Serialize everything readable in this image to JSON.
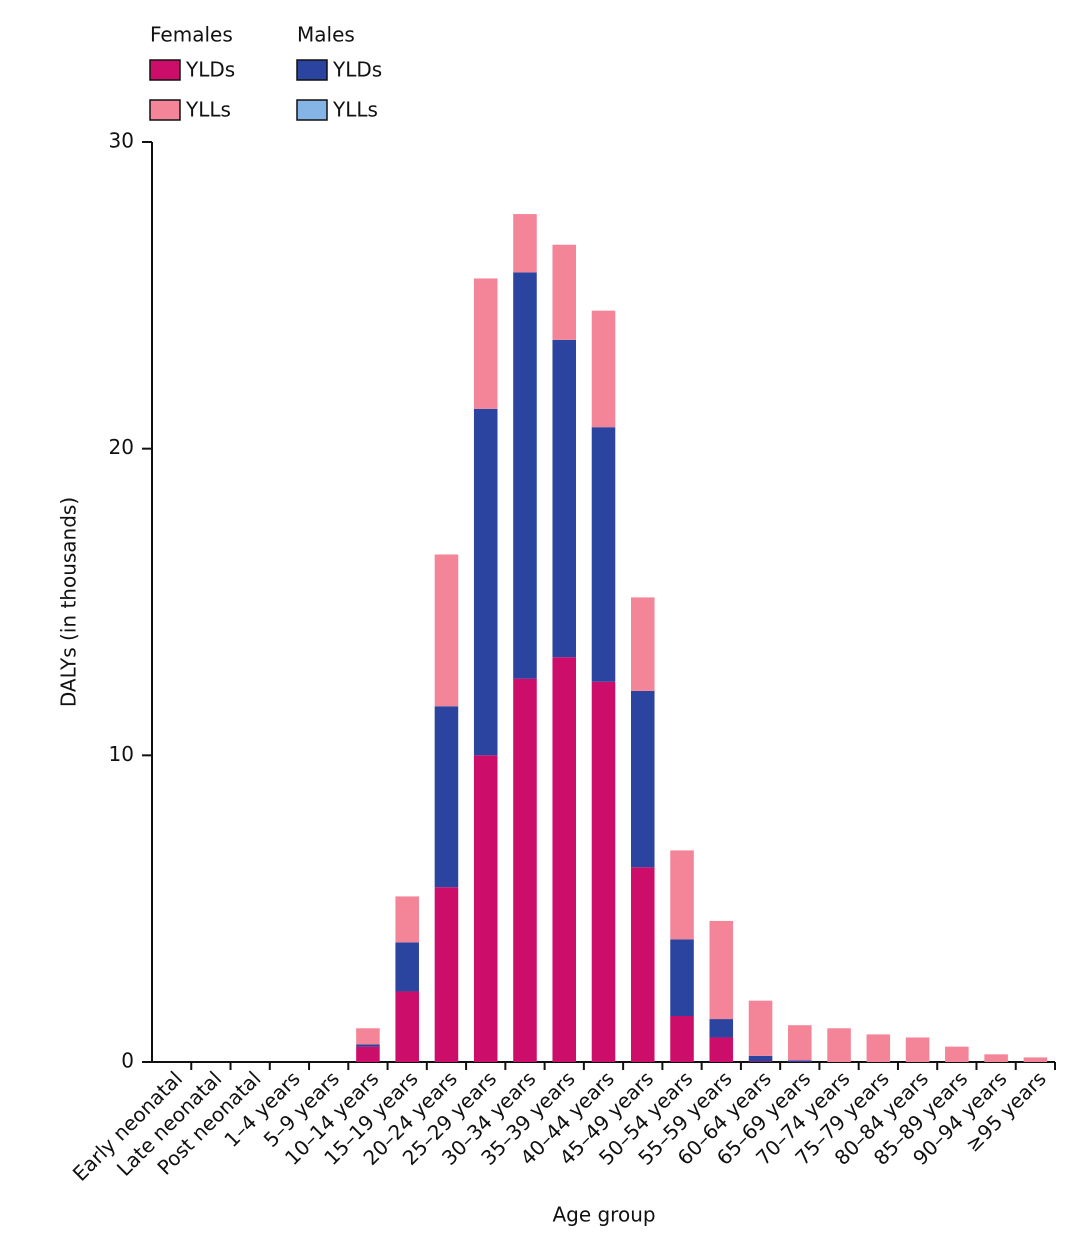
{
  "chart_data": {
    "type": "stacked_bar",
    "x_label": "Age group",
    "y_label": "DALYs (in thousands)",
    "categories": [
      "Early neonatal",
      "Late neonatal",
      "Post neonatal",
      "1–4 years",
      "5–9 years",
      "10–14 years",
      "15–19 years",
      "20–24 years",
      "25–29 years",
      "30–34 years",
      "35–39 years",
      "40–44 years",
      "45–49 years",
      "50–54 years",
      "55–59 years",
      "60–64 years",
      "65–69 years",
      "70–74 years",
      "75–79 years",
      "80–84 years",
      "85–89 years",
      "90–94 years",
      "≥95 years"
    ],
    "series": [
      {
        "group": "Females",
        "name": "YLDs",
        "color": "#cc0e6a",
        "values": [
          0,
          0,
          0,
          0,
          0,
          0.5,
          2.3,
          5.7,
          10.0,
          12.5,
          13.2,
          12.4,
          6.35,
          1.5,
          0.8,
          0.02,
          0,
          0,
          0,
          0,
          0,
          0,
          0
        ]
      },
      {
        "group": "Males",
        "name": "YLDs",
        "color": "#2b44a0",
        "values": [
          0,
          0,
          0,
          0,
          0,
          0.07,
          1.6,
          5.9,
          11.3,
          13.25,
          10.35,
          8.3,
          5.75,
          2.5,
          0.6,
          0.18,
          0.05,
          0,
          0,
          0,
          0,
          0,
          0
        ]
      },
      {
        "group": "Males",
        "name": "YLLs",
        "color": "#85b5e6",
        "values": [
          0,
          0,
          0,
          0,
          0,
          0,
          0,
          0,
          0,
          0,
          0,
          0,
          0,
          0,
          0,
          0,
          0,
          0,
          0,
          0,
          0,
          0,
          0
        ]
      },
      {
        "group": "Females",
        "name": "YLLs",
        "color": "#f48599",
        "values": [
          0,
          0,
          0,
          0,
          0,
          0.53,
          1.5,
          4.95,
          4.25,
          1.9,
          3.1,
          3.8,
          3.05,
          2.9,
          3.2,
          1.8,
          1.15,
          1.1,
          0.9,
          0.8,
          0.5,
          0.25,
          0.15
        ]
      }
    ],
    "ylim": [
      0,
      30
    ],
    "yticks": [
      0,
      10,
      20,
      30
    ]
  }
}
